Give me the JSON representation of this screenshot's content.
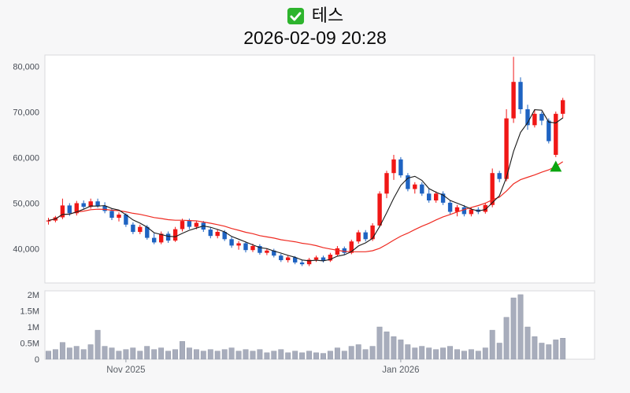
{
  "header": {
    "title": "테스",
    "subtitle": "2026-02-09 20:28",
    "icon": "green-checkbox"
  },
  "colors": {
    "up": "#f01716",
    "down": "#1e63c2",
    "ma_short": "#1a1a1a",
    "ma_long": "#ef2b22",
    "volume_bar": "#a8adbc",
    "volume_bar_edge": "#9298a8",
    "panel_border": "#d8dadd",
    "panel_bg": "#ffffff",
    "marker": "#0ba50f",
    "icon_green": "#2db42d"
  },
  "chart_data": [
    {
      "type": "candlestick",
      "name": "price",
      "title": "테스",
      "timestamp": "2026-02-09 20:28",
      "ylim": [
        32500,
        82500
      ],
      "yticks": [
        {
          "value": 80000,
          "label": "80,000"
        },
        {
          "value": 70000,
          "label": "70,000"
        },
        {
          "value": 60000,
          "label": "60,000"
        },
        {
          "value": 50000,
          "label": "50,000"
        },
        {
          "value": 40000,
          "label": "40,000"
        }
      ],
      "x_axis_labels": [
        {
          "index": 11,
          "label": "Nov 2025"
        },
        {
          "index": 50,
          "label": "Jan 2026"
        }
      ],
      "overlays": [
        {
          "name": "ma-short",
          "period": 5,
          "color": "#1a1a1a"
        },
        {
          "name": "ma-long",
          "period": 20,
          "color": "#ef2b22"
        }
      ],
      "marker": {
        "shape": "triangle-up",
        "index": 72,
        "price": 58300,
        "color": "#0ba50f"
      },
      "candles": [
        [
          46000,
          46800,
          45300,
          46200
        ],
        [
          46200,
          47200,
          45800,
          46900
        ],
        [
          46900,
          51000,
          46500,
          49500
        ],
        [
          49500,
          50000,
          47200,
          47800
        ],
        [
          47800,
          50500,
          47300,
          50000
        ],
        [
          50000,
          50600,
          48600,
          49200
        ],
        [
          49200,
          51000,
          48800,
          50400
        ],
        [
          50400,
          51000,
          49000,
          49400
        ],
        [
          49400,
          50200,
          47800,
          48300
        ],
        [
          48300,
          48800,
          46300,
          46800
        ],
        [
          46800,
          48000,
          46000,
          47500
        ],
        [
          47500,
          47800,
          44800,
          45300
        ],
        [
          45300,
          45800,
          43200,
          43700
        ],
        [
          43700,
          45300,
          43200,
          44800
        ],
        [
          44800,
          45200,
          42000,
          42400
        ],
        [
          42400,
          43400,
          41000,
          41400
        ],
        [
          41400,
          43800,
          41000,
          43300
        ],
        [
          43300,
          43800,
          41300,
          41800
        ],
        [
          41800,
          44800,
          41500,
          44300
        ],
        [
          44300,
          46600,
          43800,
          46100
        ],
        [
          46100,
          46600,
          44300,
          44800
        ],
        [
          44800,
          46200,
          44300,
          45700
        ],
        [
          45700,
          46100,
          43700,
          44200
        ],
        [
          44200,
          44700,
          42300,
          42800
        ],
        [
          42800,
          44200,
          42300,
          43700
        ],
        [
          43700,
          44100,
          41700,
          42100
        ],
        [
          42100,
          42600,
          40200,
          40700
        ],
        [
          40700,
          41700,
          39800,
          41200
        ],
        [
          41200,
          41600,
          39200,
          39700
        ],
        [
          39700,
          41100,
          39300,
          40600
        ],
        [
          40600,
          41000,
          38700,
          39100
        ],
        [
          39100,
          40100,
          38600,
          39600
        ],
        [
          39600,
          40000,
          38100,
          38500
        ],
        [
          38500,
          38900,
          37100,
          37500
        ],
        [
          37500,
          38500,
          37000,
          38100
        ],
        [
          38100,
          38400,
          36600,
          37000
        ],
        [
          37000,
          37500,
          36200,
          36600
        ],
        [
          36600,
          38000,
          36200,
          37600
        ],
        [
          37600,
          38500,
          37100,
          38100
        ],
        [
          38100,
          38500,
          37000,
          37400
        ],
        [
          37400,
          39100,
          37100,
          38700
        ],
        [
          38700,
          40600,
          38300,
          40100
        ],
        [
          40100,
          40500,
          38700,
          39100
        ],
        [
          39100,
          42000,
          38800,
          41600
        ],
        [
          41600,
          44100,
          41100,
          43600
        ],
        [
          43600,
          44100,
          41600,
          42100
        ],
        [
          42100,
          45600,
          41700,
          45100
        ],
        [
          45100,
          52600,
          44700,
          52100
        ],
        [
          52100,
          57100,
          51100,
          56600
        ],
        [
          56600,
          60600,
          55100,
          59600
        ],
        [
          59600,
          60100,
          55600,
          56100
        ],
        [
          56100,
          56600,
          52600,
          53100
        ],
        [
          53100,
          54600,
          52100,
          54100
        ],
        [
          54100,
          54600,
          51600,
          52100
        ],
        [
          52100,
          53100,
          50100,
          50600
        ],
        [
          50600,
          52600,
          50100,
          52100
        ],
        [
          52100,
          52600,
          49600,
          50100
        ],
        [
          50100,
          50600,
          47600,
          48100
        ],
        [
          48100,
          49600,
          47100,
          49100
        ],
        [
          49100,
          49600,
          47100,
          47600
        ],
        [
          47600,
          49100,
          47100,
          48600
        ],
        [
          48600,
          49100,
          47600,
          48100
        ],
        [
          48100,
          50100,
          47700,
          49600
        ],
        [
          49600,
          57600,
          49100,
          56600
        ],
        [
          56600,
          57100,
          54600,
          55300
        ],
        [
          55300,
          70600,
          54800,
          68600
        ],
        [
          68600,
          82100,
          67600,
          76600
        ],
        [
          76600,
          77600,
          69600,
          70600
        ],
        [
          70600,
          71600,
          66100,
          67100
        ],
        [
          67100,
          70600,
          66600,
          69600
        ],
        [
          69600,
          70100,
          67100,
          68100
        ],
        [
          68100,
          68600,
          63100,
          63600
        ],
        [
          60600,
          70100,
          60100,
          69600
        ],
        [
          69600,
          73100,
          68600,
          72600
        ]
      ]
    },
    {
      "type": "bar",
      "name": "volume",
      "ylim": [
        0,
        2120000
      ],
      "yticks": [
        {
          "value": 2000000,
          "label": "2M"
        },
        {
          "value": 1500000,
          "label": "1.5M"
        },
        {
          "value": 1000000,
          "label": "1M"
        },
        {
          "value": 500000,
          "label": "0.5M"
        },
        {
          "value": 0,
          "label": "0"
        }
      ],
      "values": [
        250000,
        300000,
        520000,
        350000,
        400000,
        300000,
        450000,
        900000,
        400000,
        350000,
        250000,
        300000,
        350000,
        250000,
        400000,
        300000,
        350000,
        250000,
        300000,
        550000,
        350000,
        300000,
        250000,
        300000,
        250000,
        300000,
        350000,
        250000,
        300000,
        250000,
        300000,
        200000,
        250000,
        300000,
        200000,
        250000,
        200000,
        250000,
        200000,
        180000,
        250000,
        350000,
        250000,
        400000,
        450000,
        300000,
        400000,
        1000000,
        850000,
        700000,
        600000,
        450000,
        350000,
        400000,
        350000,
        300000,
        350000,
        400000,
        300000,
        250000,
        300000,
        250000,
        350000,
        900000,
        500000,
        1300000,
        1900000,
        2000000,
        1000000,
        700000,
        500000,
        450000,
        600000,
        650000
      ]
    }
  ]
}
